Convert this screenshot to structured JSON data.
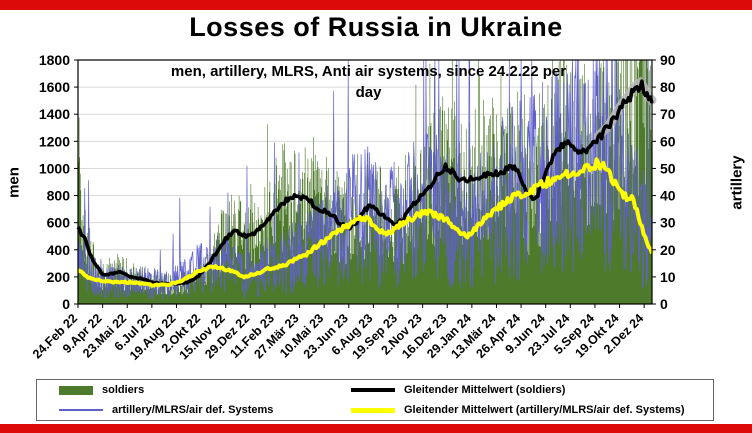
{
  "page": {
    "top_bar_color": "#dd0a0a",
    "bottom_bar_color": "#dd0a0a"
  },
  "chart": {
    "title": "Losses of Russia in Ukraine",
    "subtitle_line1": "men, artillery, MLRS, Anti air  systems, since 24.2.22 per",
    "subtitle_line2": "day",
    "left_axis_title": "men",
    "right_axis_title": "artillery"
  },
  "chart_data": {
    "type": "bar+line",
    "title": "Losses of Russia in Ukraine",
    "subtitle": "men, artillery, MLRS, Anti air systems, since 24.2.22 per day",
    "total_days": 1026,
    "tick_interval_days": 44,
    "x_tick_labels": [
      "24.Feb 22",
      "9.Apr 22",
      "23.Mai 22",
      "6.Jul 22",
      "19.Aug 22",
      "2.Okt 22",
      "15.Nov 22",
      "29.Dez 22",
      "11.Feb 23",
      "27.Mär 23",
      "10.Mai 23",
      "23.Jun 23",
      "6.Aug 23",
      "19.Sep 23",
      "2.Nov 23",
      "16.Dez 23",
      "29.Jan 24",
      "13.Mär 24",
      "26.Apr 24",
      "9.Jun 24",
      "23.Jul 24",
      "5.Sep 24",
      "19.Okt 24",
      "2.Dez 24"
    ],
    "left_axis": {
      "label": "men",
      "min": 0,
      "max": 1800,
      "step": 200
    },
    "right_axis": {
      "label": "artillery",
      "min": 0,
      "max": 90,
      "step": 10
    },
    "grid": "horizontal",
    "legend_position": "bottom",
    "colors": {
      "soldiers": "#4e7a2b",
      "artillery": "#6060cc",
      "soldiers_avg": "#000000",
      "artillery_avg": "#ffff00",
      "trend_halo": "#b9b9b9"
    },
    "series": [
      {
        "name": "soldiers",
        "type": "bar",
        "axis": "left",
        "description": "daily soldier losses; noisy daily bars around the moving average, first days spike to ~1600-1800"
      },
      {
        "name": "artillery/MLRS/air def. Systems",
        "type": "line",
        "axis": "right",
        "description": "daily artillery/MLRS/air-defense losses; very noisy thin line around its moving average, late-2024 spikes up to ~90"
      },
      {
        "name": "Gleitender Mittelwert (soldiers)",
        "type": "moving_average",
        "axis": "left",
        "knots": [
          [
            0,
            560
          ],
          [
            12,
            480
          ],
          [
            25,
            330
          ],
          [
            44,
            215
          ],
          [
            60,
            225
          ],
          [
            75,
            235
          ],
          [
            95,
            200
          ],
          [
            115,
            185
          ],
          [
            132,
            160
          ],
          [
            150,
            150
          ],
          [
            176,
            150
          ],
          [
            195,
            160
          ],
          [
            215,
            205
          ],
          [
            235,
            300
          ],
          [
            255,
            430
          ],
          [
            264,
            480
          ],
          [
            280,
            545
          ],
          [
            300,
            500
          ],
          [
            318,
            530
          ],
          [
            336,
            600
          ],
          [
            352,
            680
          ],
          [
            370,
            760
          ],
          [
            388,
            790
          ],
          [
            402,
            785
          ],
          [
            415,
            760
          ],
          [
            428,
            700
          ],
          [
            443,
            690
          ],
          [
            458,
            640
          ],
          [
            470,
            585
          ],
          [
            484,
            560
          ],
          [
            498,
            605
          ],
          [
            512,
            690
          ],
          [
            524,
            735
          ],
          [
            538,
            680
          ],
          [
            552,
            620
          ],
          [
            566,
            590
          ],
          [
            580,
            625
          ],
          [
            598,
            720
          ],
          [
            615,
            810
          ],
          [
            632,
            890
          ],
          [
            648,
            980
          ],
          [
            658,
            1015
          ],
          [
            668,
            975
          ],
          [
            680,
            930
          ],
          [
            695,
            910
          ],
          [
            710,
            930
          ],
          [
            726,
            950
          ],
          [
            742,
            955
          ],
          [
            756,
            975
          ],
          [
            770,
            1000
          ],
          [
            785,
            995
          ],
          [
            798,
            870
          ],
          [
            808,
            785
          ],
          [
            818,
            778
          ],
          [
            830,
            890
          ],
          [
            840,
            1020
          ],
          [
            852,
            1100
          ],
          [
            864,
            1170
          ],
          [
            876,
            1190
          ],
          [
            888,
            1140
          ],
          [
            900,
            1105
          ],
          [
            912,
            1140
          ],
          [
            924,
            1200
          ],
          [
            936,
            1250
          ],
          [
            948,
            1300
          ],
          [
            960,
            1380
          ],
          [
            972,
            1460
          ],
          [
            984,
            1520
          ],
          [
            996,
            1590
          ],
          [
            1006,
            1620
          ],
          [
            1014,
            1560
          ],
          [
            1020,
            1510
          ],
          [
            1026,
            1490
          ]
        ]
      },
      {
        "name": "Gleitender Mittelwert (artillery/MLRS/air def. Systems)",
        "type": "moving_average",
        "axis": "right",
        "knots": [
          [
            0,
            13
          ],
          [
            15,
            10
          ],
          [
            30,
            9
          ],
          [
            60,
            8
          ],
          [
            100,
            8
          ],
          [
            132,
            7
          ],
          [
            160,
            7
          ],
          [
            190,
            9
          ],
          [
            215,
            12
          ],
          [
            240,
            14
          ],
          [
            258,
            13
          ],
          [
            276,
            12
          ],
          [
            296,
            10
          ],
          [
            316,
            11
          ],
          [
            340,
            13
          ],
          [
            365,
            14
          ],
          [
            385,
            16
          ],
          [
            405,
            18
          ],
          [
            425,
            21
          ],
          [
            445,
            24
          ],
          [
            465,
            27
          ],
          [
            485,
            29
          ],
          [
            500,
            31
          ],
          [
            515,
            32
          ],
          [
            530,
            29
          ],
          [
            545,
            26
          ],
          [
            560,
            27
          ],
          [
            580,
            30
          ],
          [
            600,
            32
          ],
          [
            620,
            34
          ],
          [
            640,
            33
          ],
          [
            660,
            31
          ],
          [
            678,
            27
          ],
          [
            695,
            25
          ],
          [
            712,
            28
          ],
          [
            730,
            32
          ],
          [
            748,
            35
          ],
          [
            766,
            38
          ],
          [
            784,
            40
          ],
          [
            802,
            41
          ],
          [
            820,
            43
          ],
          [
            840,
            45
          ],
          [
            858,
            46
          ],
          [
            876,
            48
          ],
          [
            894,
            48
          ],
          [
            912,
            50
          ],
          [
            930,
            52
          ],
          [
            944,
            50
          ],
          [
            956,
            46
          ],
          [
            968,
            42
          ],
          [
            980,
            39
          ],
          [
            990,
            40
          ],
          [
            1000,
            34
          ],
          [
            1010,
            27
          ],
          [
            1018,
            22
          ],
          [
            1026,
            19
          ]
        ]
      }
    ]
  },
  "legend": {
    "items": [
      {
        "label": "soldiers"
      },
      {
        "label": "Gleitender Mittelwert (soldiers)"
      },
      {
        "label": "artillery/MLRS/air def. Systems"
      },
      {
        "label": "Gleitender Mittelwert (artillery/MLRS/air def. Systems)"
      }
    ]
  }
}
